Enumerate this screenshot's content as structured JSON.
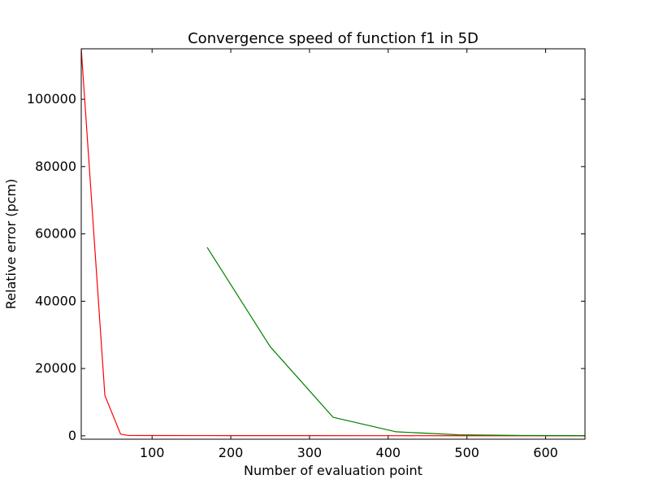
{
  "chart_data": {
    "type": "line",
    "title": "Convergence speed of function f1 in 5D",
    "xlabel": "Number of evaluation point",
    "ylabel": "Relative error (pcm)",
    "xlim": [
      10,
      650
    ],
    "ylim": [
      -1000,
      115000
    ],
    "xticks": [
      100,
      200,
      300,
      400,
      500,
      600
    ],
    "yticks": [
      0,
      20000,
      40000,
      60000,
      80000,
      100000
    ],
    "grid": false,
    "series": [
      {
        "color": "#ff0000",
        "x": [
          10,
          40,
          60,
          70,
          100,
          200,
          300,
          400,
          500,
          600,
          650
        ],
        "y": [
          115000,
          12000,
          500,
          100,
          80,
          60,
          50,
          40,
          30,
          20,
          10
        ]
      },
      {
        "color": "#008000",
        "x": [
          170,
          250,
          330,
          410,
          490,
          570,
          650
        ],
        "y": [
          56000,
          26500,
          5500,
          1200,
          300,
          100,
          50
        ]
      }
    ]
  }
}
